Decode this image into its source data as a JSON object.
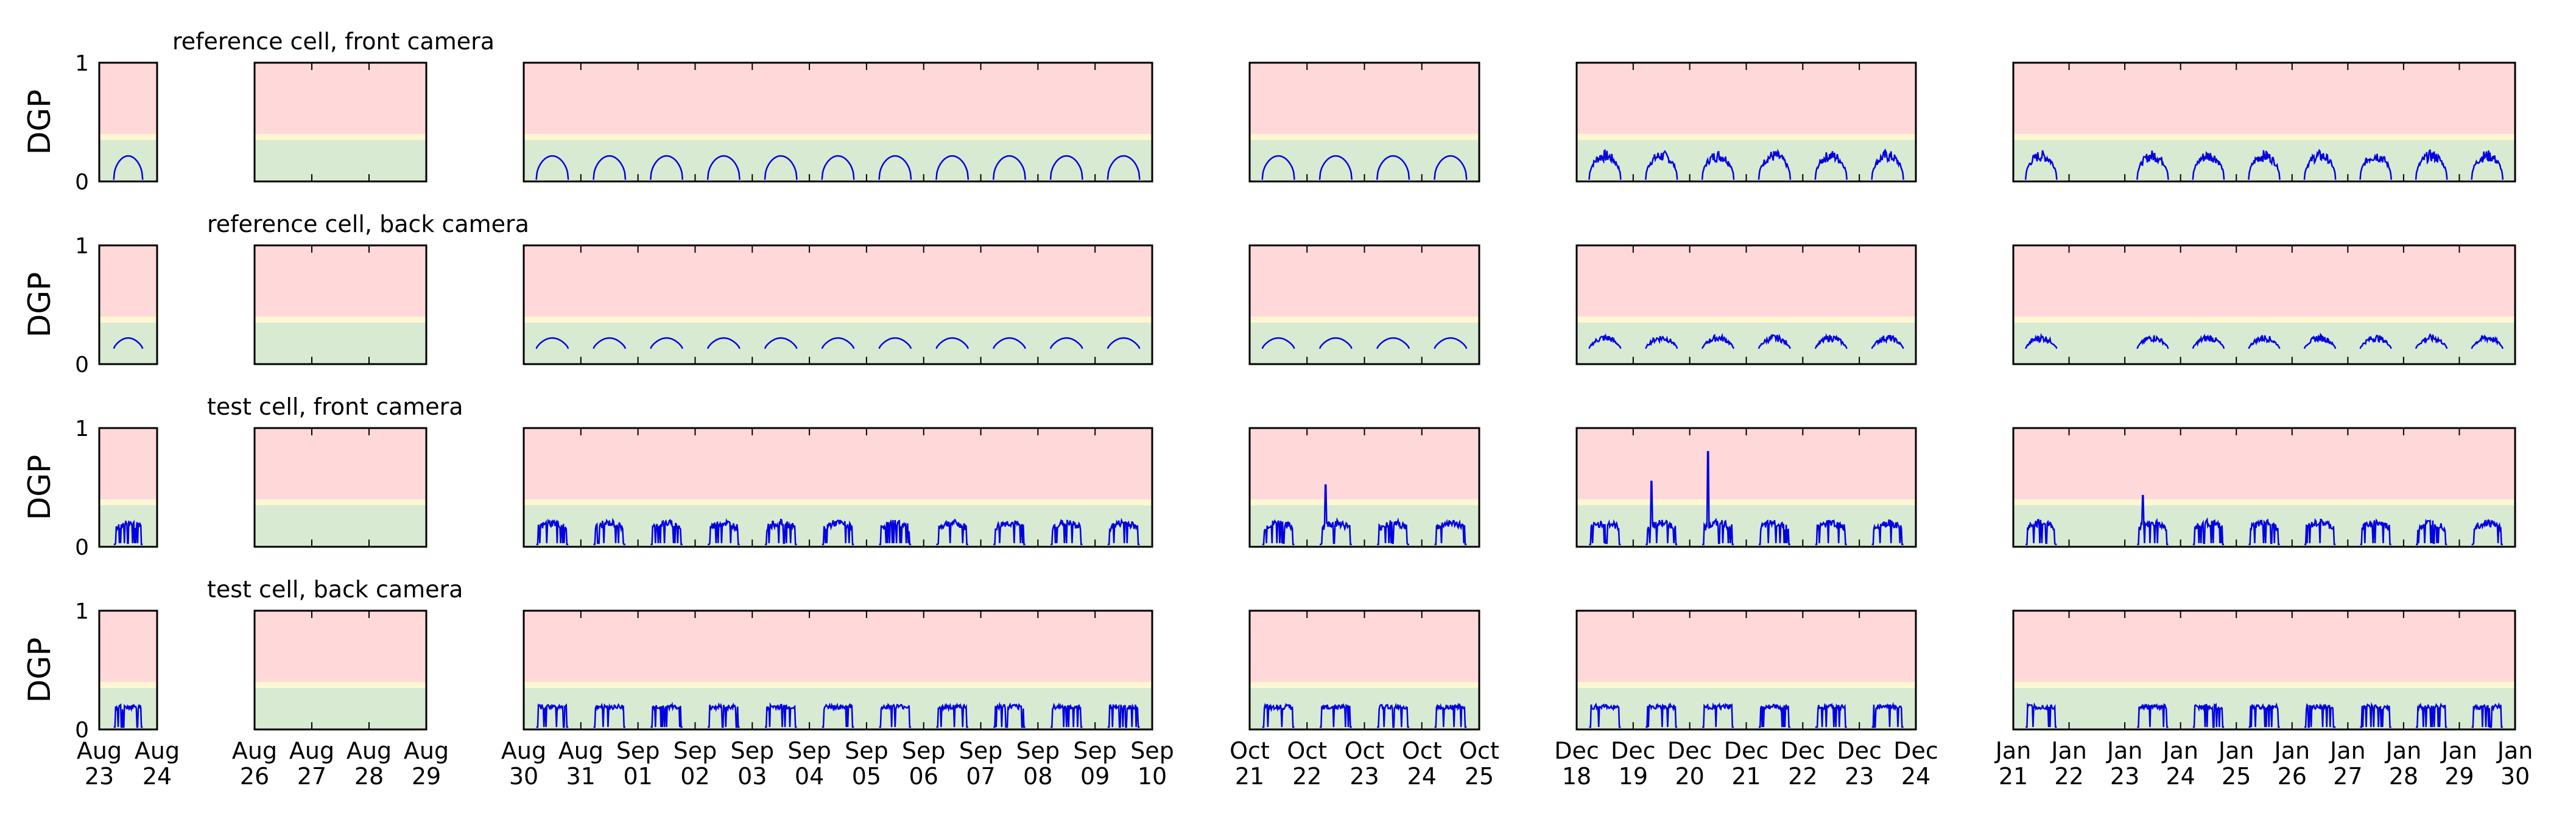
{
  "figure": {
    "ylabel": "DGP",
    "zone_colors": {
      "green": "#d9ead3",
      "yellow": "#fff7d1",
      "red": "#ffd9da"
    },
    "zone_bounds": [
      0.35,
      0.4
    ],
    "line_color": "#0000e0",
    "frame_color": "#000000"
  },
  "chart_data": {
    "type": "line",
    "ylim": [
      0,
      1
    ],
    "yticks": [
      "1",
      "0"
    ],
    "grid": false,
    "legend": "none",
    "rows": [
      {
        "title": "reference cell, front camera",
        "pattern": "smooth"
      },
      {
        "title": "reference cell, back camera",
        "pattern": "flat"
      },
      {
        "title": "test cell, front camera",
        "pattern": "blinds"
      },
      {
        "title": "test cell, back camera",
        "pattern": "square"
      }
    ],
    "panels": [
      {
        "ticks": [
          [
            "Aug",
            "23"
          ],
          [
            "Aug",
            "24"
          ]
        ],
        "days": [
          0
        ]
      },
      {
        "ticks": [
          [
            "Aug",
            "26"
          ],
          [
            "Aug",
            "27"
          ],
          [
            "Aug",
            "28"
          ],
          [
            "Aug",
            "29"
          ]
        ],
        "days": []
      },
      {
        "ticks": [
          [
            "Aug",
            "30"
          ],
          [
            "Aug",
            "31"
          ],
          [
            "Sep",
            "01"
          ],
          [
            "Sep",
            "02"
          ],
          [
            "Sep",
            "03"
          ],
          [
            "Sep",
            "04"
          ],
          [
            "Sep",
            "05"
          ],
          [
            "Sep",
            "06"
          ],
          [
            "Sep",
            "07"
          ],
          [
            "Sep",
            "08"
          ],
          [
            "Sep",
            "09"
          ],
          [
            "Sep",
            "10"
          ]
        ],
        "days": [
          0,
          1,
          2,
          3,
          4,
          5,
          6,
          7,
          8,
          9,
          10
        ]
      },
      {
        "ticks": [
          [
            "Oct",
            "21"
          ],
          [
            "Oct",
            "22"
          ],
          [
            "Oct",
            "23"
          ],
          [
            "Oct",
            "24"
          ],
          [
            "Oct",
            "25"
          ]
        ],
        "days": [
          0,
          1,
          2,
          3
        ]
      },
      {
        "ticks": [
          [
            "Dec",
            "18"
          ],
          [
            "Dec",
            "19"
          ],
          [
            "Dec",
            "20"
          ],
          [
            "Dec",
            "21"
          ],
          [
            "Dec",
            "22"
          ],
          [
            "Dec",
            "23"
          ],
          [
            "Dec",
            "24"
          ]
        ],
        "days": [
          0,
          1,
          2,
          3,
          4,
          5
        ]
      },
      {
        "ticks": [
          [
            "Jan",
            "21"
          ],
          [
            "Jan",
            "22"
          ],
          [
            "Jan",
            "23"
          ],
          [
            "Jan",
            "24"
          ],
          [
            "Jan",
            "25"
          ],
          [
            "Jan",
            "26"
          ],
          [
            "Jan",
            "27"
          ],
          [
            "Jan",
            "28"
          ],
          [
            "Jan",
            "29"
          ],
          [
            "Jan",
            "30"
          ]
        ],
        "days": [
          0,
          2,
          3,
          4,
          5,
          6,
          7,
          8
        ]
      }
    ],
    "daily_peak_dgp": {
      "reference_front": [
        0.2,
        0.2,
        0.2,
        0.2,
        0.21,
        0.22,
        0.22,
        0.22,
        0.2,
        0.2
      ],
      "reference_back": [
        0.2,
        0.2,
        0.2,
        0.2,
        0.2,
        0.2,
        0.2,
        0.2,
        0.2,
        0.2
      ],
      "test_front_spikes": [
        0.52,
        0.55,
        0.8,
        0.43
      ],
      "test_back": [
        0.2,
        0.2,
        0.2,
        0.2,
        0.2,
        0.2,
        0.2,
        0.2
      ]
    }
  }
}
